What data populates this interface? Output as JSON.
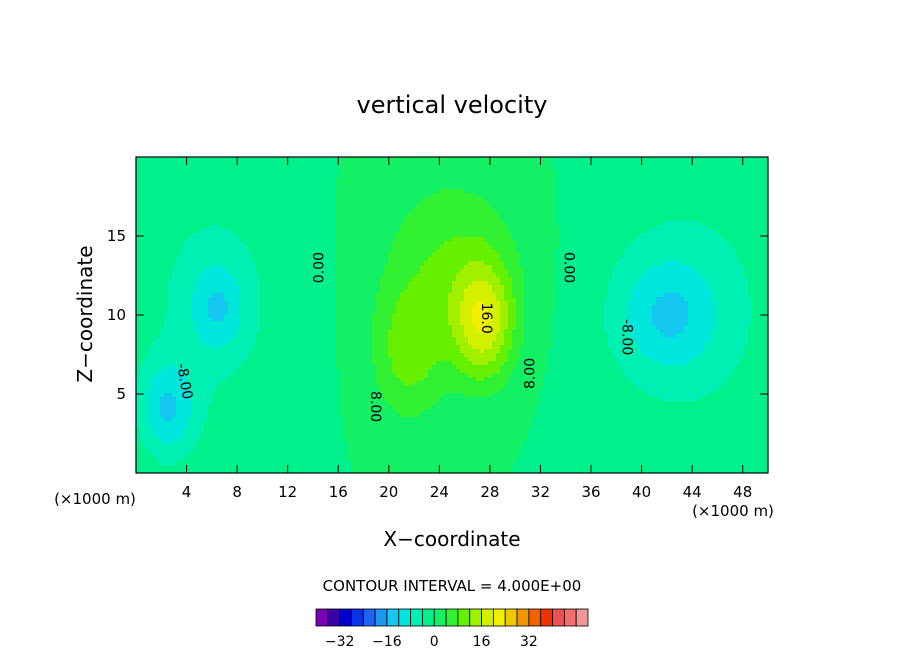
{
  "chart_data": {
    "type": "heatmap",
    "title": "vertical velocity",
    "xlabel": "X−coordinate",
    "ylabel": "Z−coordinate",
    "x_unit_left": "(×1000 m)",
    "x_unit_right": "(×1000 m)",
    "xlim": [
      0,
      50
    ],
    "ylim": [
      0,
      20
    ],
    "x_ticks": [
      4,
      8,
      12,
      16,
      20,
      24,
      28,
      32,
      36,
      40,
      44,
      48
    ],
    "y_ticks": [
      5,
      10,
      15
    ],
    "contour_interval_label": "CONTOUR INTERVAL = 4.000E+00",
    "contour_labels": [
      {
        "text": "0.00",
        "x": 14.5,
        "y": 13.0,
        "angle": -90
      },
      {
        "text": "0.00",
        "x": 34.2,
        "y": 13.0,
        "angle": 90
      },
      {
        "text": "16.0",
        "x": 27.7,
        "y": 9.8,
        "angle": 90
      },
      {
        "text": "8.00",
        "x": 31.2,
        "y": 6.3,
        "angle": -90
      },
      {
        "text": "8.00",
        "x": 18.9,
        "y": 4.2,
        "angle": 90
      },
      {
        "text": "-8.00",
        "x": 3.8,
        "y": 5.8,
        "angle": 80
      },
      {
        "text": "-8.00",
        "x": 38.8,
        "y": 8.6,
        "angle": 90
      }
    ],
    "colorbar": {
      "min": -40,
      "max": 40,
      "step": 4,
      "tick_values": [
        -32,
        -16,
        0,
        16,
        32
      ],
      "colors": [
        "#7a00b4",
        "#3c00a8",
        "#0000c8",
        "#0a32e6",
        "#1e64f0",
        "#1e96f0",
        "#14c8f0",
        "#00e6dc",
        "#00f0b4",
        "#00f08c",
        "#14f064",
        "#32f032",
        "#64f000",
        "#a0f000",
        "#d2f000",
        "#f0f000",
        "#f0c800",
        "#f09600",
        "#f06400",
        "#f03200",
        "#f05050",
        "#f06e6e",
        "#f09696"
      ]
    },
    "field_components": [
      {
        "x": 27.5,
        "y": 9.5,
        "amplitude": 16.5,
        "sx": 1.7,
        "sy": 2.6
      },
      {
        "x": 21.5,
        "y": 7.5,
        "amplitude": 8.5,
        "sx": 2.0,
        "sy": 3.0
      },
      {
        "x": 25.0,
        "y": 13.0,
        "amplitude": 8.0,
        "sx": 3.8,
        "sy": 4.2
      },
      {
        "x": 6.5,
        "y": 10.5,
        "amplitude": -8.0,
        "sx": 1.5,
        "sy": 2.0
      },
      {
        "x": 2.5,
        "y": 4.0,
        "amplitude": -11.0,
        "sx": 1.6,
        "sy": 2.2
      },
      {
        "x": 6.0,
        "y": 11.0,
        "amplitude": -5.0,
        "sx": 4.5,
        "sy": 6.0
      },
      {
        "x": 42.0,
        "y": 10.0,
        "amplitude": -8.5,
        "sx": 2.8,
        "sy": 2.6
      },
      {
        "x": 44.0,
        "y": 10.5,
        "amplitude": -5.0,
        "sx": 5.5,
        "sy": 6.5
      }
    ]
  }
}
